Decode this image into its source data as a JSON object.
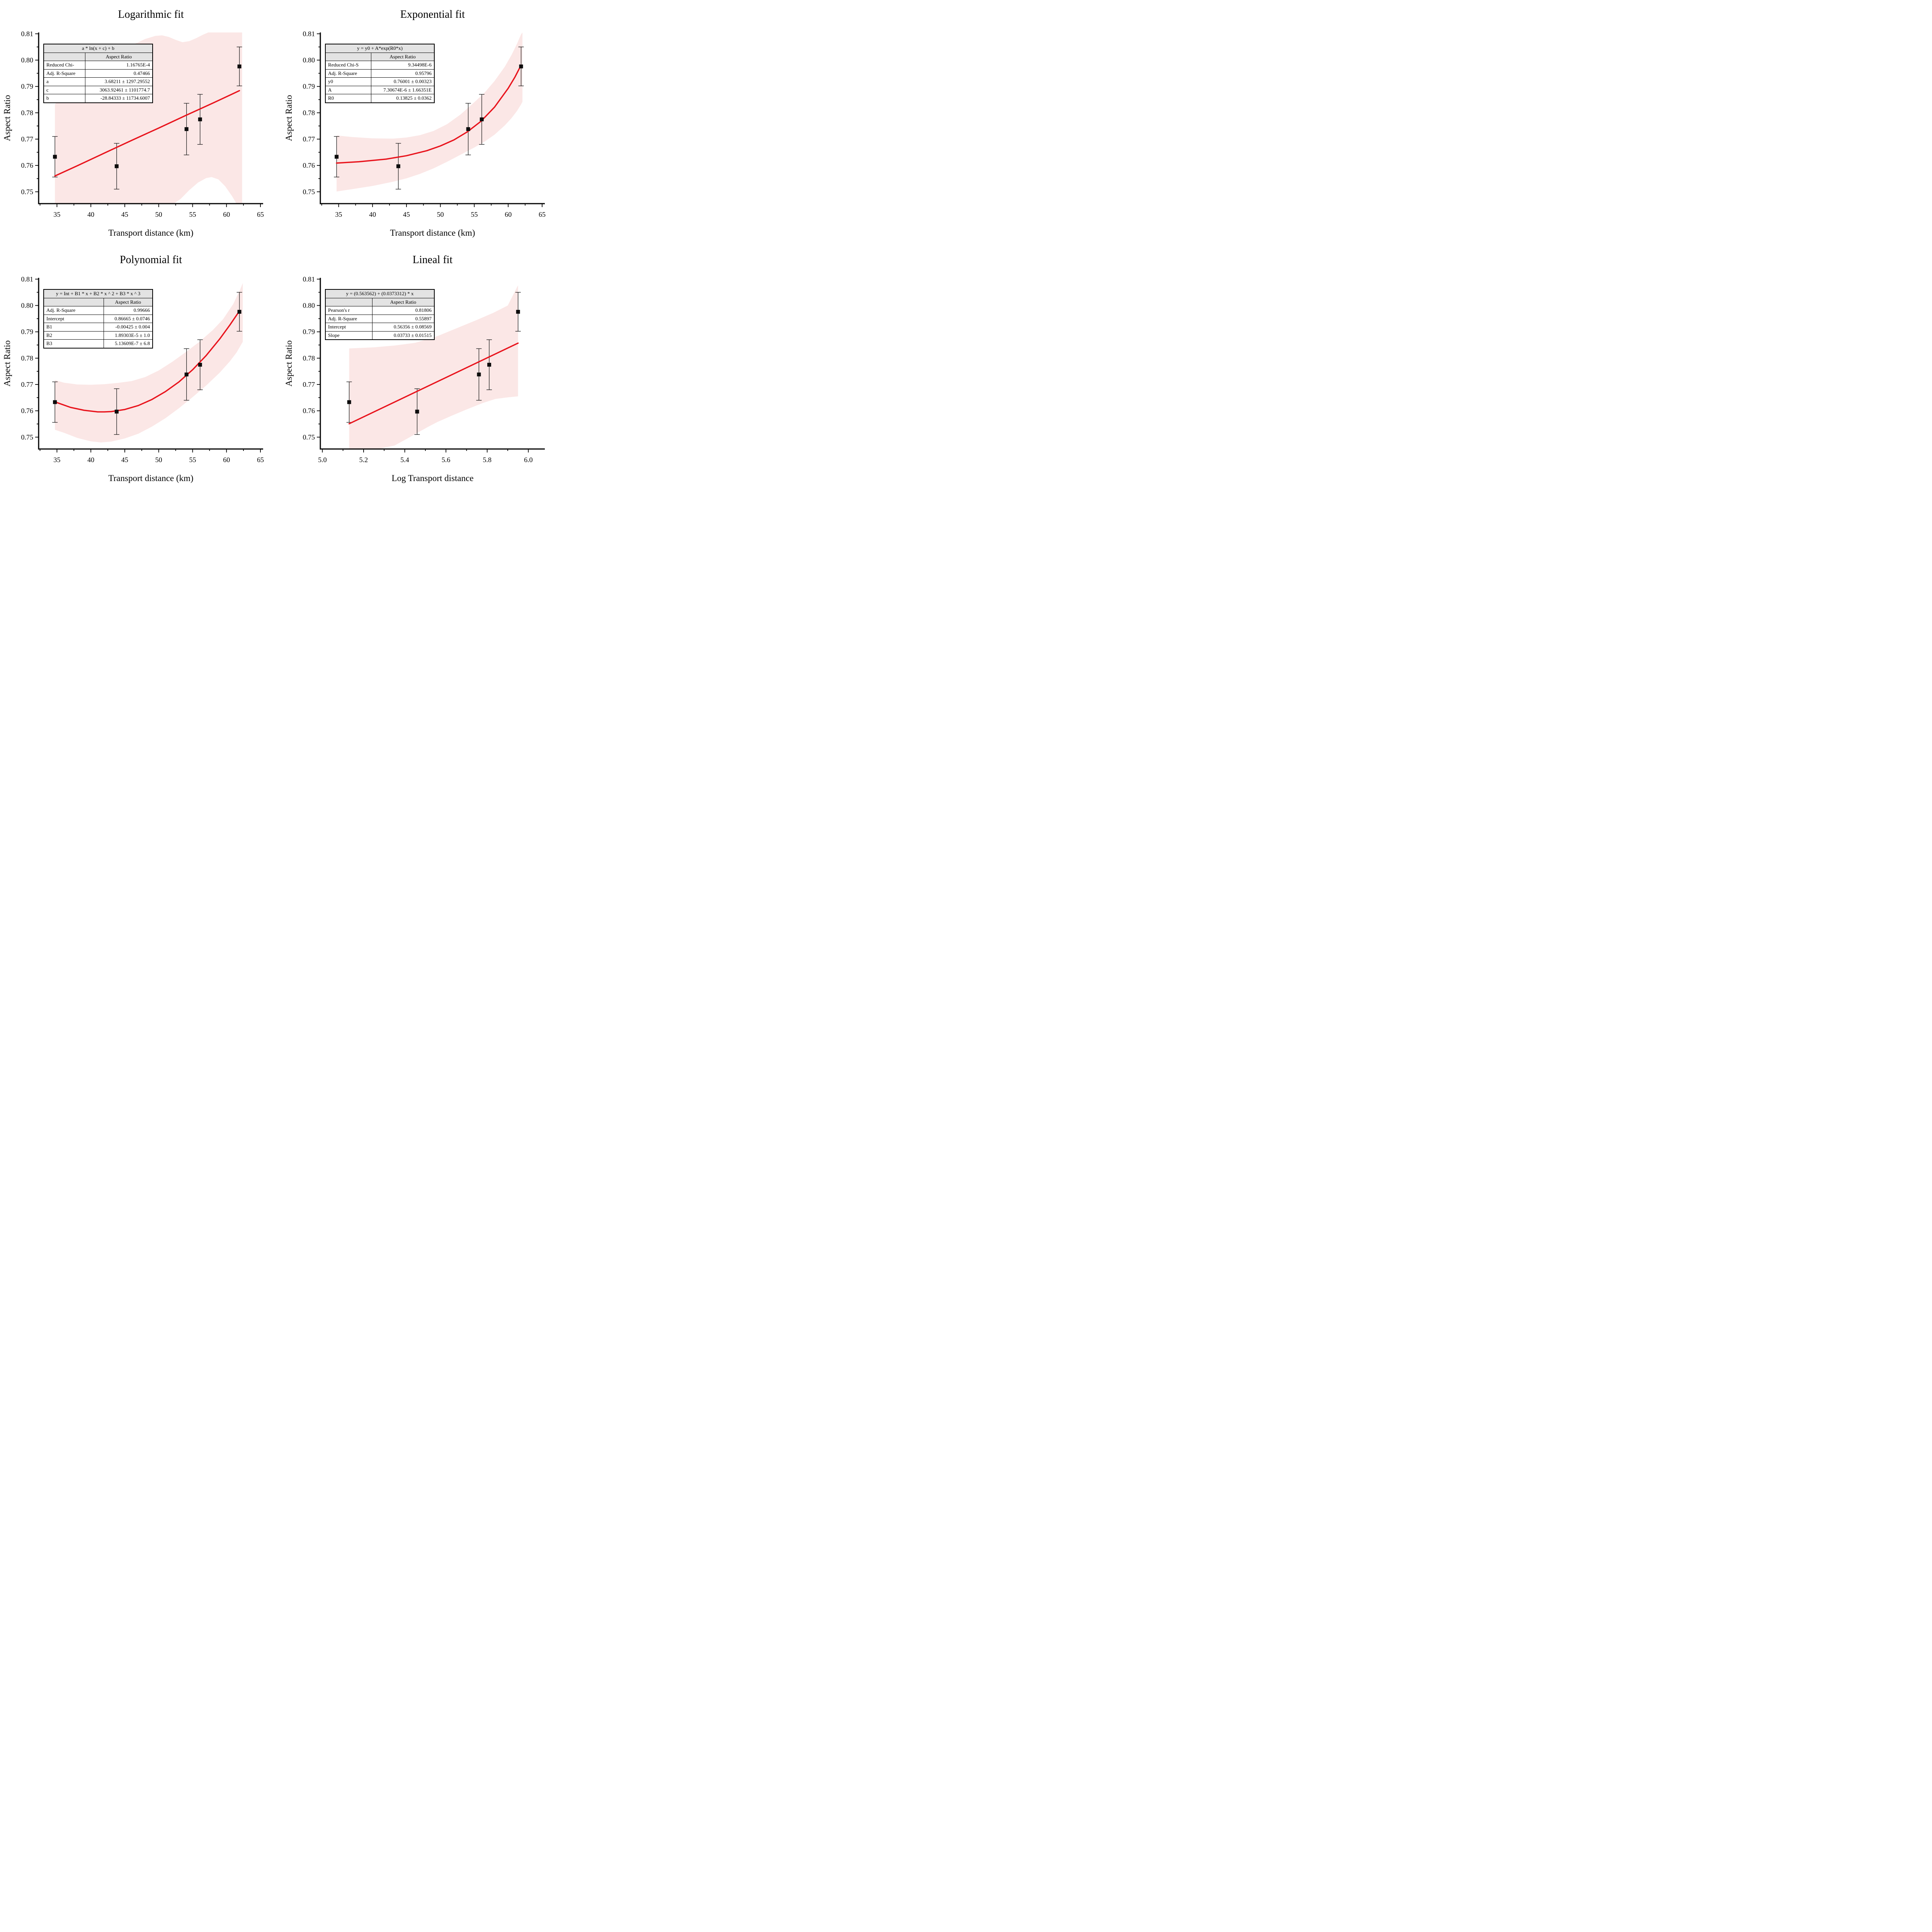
{
  "palette": {
    "fit_line": "#e8131c",
    "band": "#fbe7e6",
    "marker": "#0d0d0d",
    "error_bar": "#1a1a1a",
    "axis": "#000000",
    "table_header_bg": "#e3e3e3"
  },
  "chart_data": [
    {
      "type": "scatter",
      "title": "Logarithmic fit",
      "xlabel": "Transport distance (km)",
      "ylabel": "Aspect Ratio",
      "xlim": [
        32.3,
        65.4
      ],
      "ylim": [
        0.7455,
        0.8105
      ],
      "grid": false,
      "xticks": {
        "major": [
          35,
          40,
          45,
          50,
          55,
          60,
          65
        ],
        "labels": [
          "35",
          "40",
          "45",
          "50",
          "55",
          "60",
          "65"
        ],
        "minor": [
          32.5,
          37.5,
          42.5,
          47.5,
          52.5,
          57.5,
          62.5
        ]
      },
      "yticks": {
        "major": [
          0.75,
          0.76,
          0.77,
          0.78,
          0.79,
          0.8,
          0.81
        ],
        "labels": [
          "0.75",
          "0.76",
          "0.77",
          "0.78",
          "0.79",
          "0.80",
          "0.81"
        ],
        "minor": [
          0.755,
          0.765,
          0.775,
          0.785,
          0.795,
          0.805
        ]
      },
      "points": {
        "x": [
          34.7,
          43.8,
          54.1,
          56.1,
          61.9
        ],
        "y": [
          0.7633,
          0.7597,
          0.7738,
          0.7775,
          0.7976
        ],
        "yerr": [
          0.0077,
          0.0087,
          0.0098,
          0.0095,
          0.0074
        ]
      },
      "fit": [
        [
          34.7,
          0.756
        ],
        [
          38,
          0.7599
        ],
        [
          42,
          0.7647
        ],
        [
          46,
          0.7695
        ],
        [
          50,
          0.7742
        ],
        [
          54,
          0.779
        ],
        [
          58,
          0.7837
        ],
        [
          61,
          0.7873
        ],
        [
          61.9,
          0.7884
        ]
      ],
      "band": {
        "top": [
          [
            34.7,
            0.7832
          ],
          [
            36.5,
            0.7878
          ],
          [
            38.5,
            0.7925
          ],
          [
            40.5,
            0.7967
          ],
          [
            42.5,
            0.8003
          ],
          [
            44.5,
            0.8034
          ],
          [
            46.5,
            0.8062
          ],
          [
            48,
            0.808
          ],
          [
            49.5,
            0.8092
          ],
          [
            50.5,
            0.8094
          ],
          [
            51.5,
            0.8088
          ],
          [
            52.5,
            0.8077
          ],
          [
            53.5,
            0.8068
          ],
          [
            54.5,
            0.8072
          ],
          [
            55.5,
            0.8083
          ],
          [
            56.5,
            0.8096
          ],
          [
            57.3,
            0.8105
          ],
          [
            62.3,
            0.8105
          ]
        ],
        "bottom": [
          [
            34.7,
            0.7455
          ],
          [
            52.2,
            0.7455
          ],
          [
            53.2,
            0.7472
          ],
          [
            54.5,
            0.7506
          ],
          [
            55.8,
            0.7535
          ],
          [
            57,
            0.7552
          ],
          [
            57.8,
            0.7556
          ],
          [
            58.8,
            0.7547
          ],
          [
            59.8,
            0.7521
          ],
          [
            60.8,
            0.7484
          ],
          [
            61.4,
            0.7458
          ],
          [
            61.6,
            0.7455
          ],
          [
            62.3,
            0.7455
          ]
        ]
      },
      "table": {
        "formula": "a * ln(x + c) + b",
        "value_col": "Aspect Ratio",
        "rows": [
          [
            "Reduced Chi-",
            "1.16765E-4"
          ],
          [
            "Adj. R-Square",
            "0.47466"
          ],
          [
            "a",
            "3.68211 ± 1297.29552"
          ],
          [
            "c",
            "3063.92461 ± 1101774.7"
          ],
          [
            "b",
            "-28.84333 ± 11734.6007"
          ]
        ]
      }
    },
    {
      "type": "scatter",
      "title": "Exponential fit",
      "xlabel": "Transport distance (km)",
      "ylabel": "Aspect Ratio",
      "xlim": [
        32.3,
        65.4
      ],
      "ylim": [
        0.7455,
        0.8105
      ],
      "grid": false,
      "xticks": {
        "major": [
          35,
          40,
          45,
          50,
          55,
          60,
          65
        ],
        "labels": [
          "35",
          "40",
          "45",
          "50",
          "55",
          "60",
          "65"
        ],
        "minor": [
          32.5,
          37.5,
          42.5,
          47.5,
          52.5,
          57.5,
          62.5
        ]
      },
      "yticks": {
        "major": [
          0.75,
          0.76,
          0.77,
          0.78,
          0.79,
          0.8,
          0.81
        ],
        "labels": [
          "0.75",
          "0.76",
          "0.77",
          "0.78",
          "0.79",
          "0.80",
          "0.81"
        ],
        "minor": [
          0.755,
          0.765,
          0.775,
          0.785,
          0.795,
          0.805
        ]
      },
      "points": {
        "x": [
          34.7,
          43.8,
          54.1,
          56.1,
          61.9
        ],
        "y": [
          0.7633,
          0.7597,
          0.7738,
          0.7775,
          0.7976
        ],
        "yerr": [
          0.0077,
          0.0087,
          0.0098,
          0.0095,
          0.0074
        ]
      },
      "fit": [
        [
          34.7,
          0.7609
        ],
        [
          38,
          0.7614
        ],
        [
          42,
          0.7624
        ],
        [
          45,
          0.7637
        ],
        [
          48,
          0.7656
        ],
        [
          50,
          0.7674
        ],
        [
          52,
          0.7697
        ],
        [
          54,
          0.7728
        ],
        [
          56,
          0.7768
        ],
        [
          58,
          0.7822
        ],
        [
          60,
          0.7893
        ],
        [
          61,
          0.7936
        ],
        [
          61.9,
          0.7981
        ]
      ],
      "band": {
        "top": [
          [
            34.7,
            0.7714
          ],
          [
            37,
            0.7708
          ],
          [
            40,
            0.7703
          ],
          [
            43,
            0.7702
          ],
          [
            45,
            0.7706
          ],
          [
            47,
            0.7715
          ],
          [
            49,
            0.7731
          ],
          [
            51,
            0.7757
          ],
          [
            53,
            0.7794
          ],
          [
            55,
            0.784
          ],
          [
            56.5,
            0.7876
          ],
          [
            58,
            0.7921
          ],
          [
            59.5,
            0.7975
          ],
          [
            60.5,
            0.802
          ],
          [
            61.3,
            0.8062
          ],
          [
            61.9,
            0.8098
          ],
          [
            62.1,
            0.8105
          ]
        ],
        "bottom": [
          [
            34.7,
            0.7501
          ],
          [
            37,
            0.751
          ],
          [
            40,
            0.7522
          ],
          [
            43,
            0.7538
          ],
          [
            45,
            0.7551
          ],
          [
            47,
            0.7568
          ],
          [
            49,
            0.7589
          ],
          [
            51,
            0.7614
          ],
          [
            53,
            0.7641
          ],
          [
            55,
            0.7668
          ],
          [
            56.5,
            0.769
          ],
          [
            58,
            0.7717
          ],
          [
            59.5,
            0.7752
          ],
          [
            60.5,
            0.778
          ],
          [
            61.3,
            0.7807
          ],
          [
            61.9,
            0.7832
          ],
          [
            62.1,
            0.7842
          ]
        ]
      },
      "table": {
        "formula": "y = y0 + A*exp(R0*x)",
        "value_col": "Aspect Ratio",
        "rows": [
          [
            "Reduced Chi-S",
            "9.34498E-6"
          ],
          [
            "Adj. R-Square",
            "0.95796"
          ],
          [
            "y0",
            "0.76001 ± 0.00323"
          ],
          [
            "A",
            "7.30674E-6 ± 1.66351E"
          ],
          [
            "R0",
            "0.13825 ± 0.0362"
          ]
        ]
      }
    },
    {
      "type": "scatter",
      "title": "Polynomial fit",
      "xlabel": "Transport distance (km)",
      "ylabel": "Aspect Ratio",
      "xlim": [
        32.3,
        65.4
      ],
      "ylim": [
        0.7455,
        0.8105
      ],
      "grid": false,
      "xticks": {
        "major": [
          35,
          40,
          45,
          50,
          55,
          60,
          65
        ],
        "labels": [
          "35",
          "40",
          "45",
          "50",
          "55",
          "60",
          "65"
        ],
        "minor": [
          32.5,
          37.5,
          42.5,
          47.5,
          52.5,
          57.5,
          62.5
        ]
      },
      "yticks": {
        "major": [
          0.75,
          0.76,
          0.77,
          0.78,
          0.79,
          0.8,
          0.81
        ],
        "labels": [
          "0.75",
          "0.76",
          "0.77",
          "0.78",
          "0.79",
          "0.80",
          "0.81"
        ],
        "minor": [
          0.755,
          0.765,
          0.775,
          0.785,
          0.795,
          0.805
        ]
      },
      "points": {
        "x": [
          34.7,
          43.8,
          54.1,
          56.1,
          61.9
        ],
        "y": [
          0.7633,
          0.7597,
          0.7738,
          0.7775,
          0.7976
        ],
        "yerr": [
          0.0077,
          0.0087,
          0.0098,
          0.0095,
          0.0074
        ]
      },
      "fit": [
        [
          34.7,
          0.7634
        ],
        [
          37,
          0.7613
        ],
        [
          39,
          0.7602
        ],
        [
          41,
          0.7596
        ],
        [
          42,
          0.7596
        ],
        [
          43,
          0.7597
        ],
        [
          45,
          0.7605
        ],
        [
          47,
          0.762
        ],
        [
          49,
          0.7643
        ],
        [
          51,
          0.7673
        ],
        [
          53,
          0.771
        ],
        [
          55,
          0.7756
        ],
        [
          57,
          0.781
        ],
        [
          59,
          0.7873
        ],
        [
          60.5,
          0.7926
        ],
        [
          61.9,
          0.7979
        ]
      ],
      "band": {
        "top": [
          [
            34.7,
            0.7717
          ],
          [
            36,
            0.7707
          ],
          [
            38,
            0.77
          ],
          [
            40,
            0.7699
          ],
          [
            42,
            0.7701
          ],
          [
            44,
            0.7706
          ],
          [
            46,
            0.7713
          ],
          [
            48,
            0.7728
          ],
          [
            50,
            0.7753
          ],
          [
            52,
            0.7786
          ],
          [
            54,
            0.7823
          ],
          [
            56,
            0.7862
          ],
          [
            58,
            0.7907
          ],
          [
            59.5,
            0.7948
          ],
          [
            61,
            0.8006
          ],
          [
            62,
            0.806
          ],
          [
            62.4,
            0.8085
          ]
        ],
        "bottom": [
          [
            34.7,
            0.7528
          ],
          [
            36,
            0.7517
          ],
          [
            38,
            0.7497
          ],
          [
            40,
            0.7484
          ],
          [
            41.5,
            0.748
          ],
          [
            43,
            0.7483
          ],
          [
            45,
            0.7495
          ],
          [
            47,
            0.7513
          ],
          [
            49,
            0.754
          ],
          [
            51,
            0.7572
          ],
          [
            53,
            0.761
          ],
          [
            55,
            0.7652
          ],
          [
            57,
            0.7696
          ],
          [
            59,
            0.7745
          ],
          [
            60.5,
            0.7788
          ],
          [
            61.5,
            0.7822
          ],
          [
            62.4,
            0.7862
          ]
        ]
      },
      "table": {
        "formula": "y =  Int + B1 * x + B2 * x ^ 2 + B3 * x ^ 3",
        "value_col": "Aspect Ratio",
        "rows": [
          [
            "Adj. R-Square",
            "0.99666"
          ],
          [
            "Intercept",
            "0.86665 ± 0.0746"
          ],
          [
            "B1",
            "-0.00425 ± 0.004"
          ],
          [
            "B2",
            "1.89303E-5 ± 1.0"
          ],
          [
            "B3",
            "5.13609E-7 ± 6.8"
          ]
        ]
      }
    },
    {
      "type": "scatter",
      "title": "Lineal fit",
      "xlabel": "Log Transport distance",
      "ylabel": "Aspect Ratio",
      "xlim": [
        4.99,
        6.08
      ],
      "ylim": [
        0.7455,
        0.8105
      ],
      "grid": false,
      "xticks": {
        "major": [
          5.0,
          5.2,
          5.4,
          5.6,
          5.8,
          6.0
        ],
        "labels": [
          "5.0",
          "5.2",
          "5.4",
          "5.6",
          "5.8",
          "6.0"
        ],
        "minor": [
          5.1,
          5.3,
          5.5,
          5.7,
          5.9
        ]
      },
      "yticks": {
        "major": [
          0.75,
          0.76,
          0.77,
          0.78,
          0.79,
          0.8,
          0.81
        ],
        "labels": [
          "0.75",
          "0.76",
          "0.77",
          "0.78",
          "0.79",
          "0.80",
          "0.81"
        ],
        "minor": [
          0.755,
          0.765,
          0.775,
          0.785,
          0.795,
          0.805
        ]
      },
      "points": {
        "x": [
          5.13,
          5.46,
          5.76,
          5.81,
          5.95
        ],
        "y": [
          0.7633,
          0.7597,
          0.7738,
          0.7775,
          0.7976
        ],
        "yerr": [
          0.0077,
          0.0087,
          0.0098,
          0.0095,
          0.0074
        ]
      },
      "fit": [
        [
          5.13,
          0.7551
        ],
        [
          5.95,
          0.7857
        ]
      ],
      "band": {
        "top": [
          [
            5.13,
            0.7837
          ],
          [
            5.25,
            0.7841
          ],
          [
            5.35,
            0.7848
          ],
          [
            5.45,
            0.7858
          ],
          [
            5.56,
            0.7884
          ],
          [
            5.65,
            0.7913
          ],
          [
            5.75,
            0.7945
          ],
          [
            5.83,
            0.7972
          ],
          [
            5.9,
            0.8
          ],
          [
            5.95,
            0.8077
          ]
        ],
        "bottom": [
          [
            5.13,
            0.7455
          ],
          [
            5.27,
            0.7455
          ],
          [
            5.35,
            0.7468
          ],
          [
            5.42,
            0.7498
          ],
          [
            5.46,
            0.7516
          ],
          [
            5.52,
            0.7542
          ],
          [
            5.56,
            0.7558
          ],
          [
            5.63,
            0.7582
          ],
          [
            5.7,
            0.7605
          ],
          [
            5.78,
            0.763
          ],
          [
            5.84,
            0.7645
          ],
          [
            5.9,
            0.7651
          ],
          [
            5.95,
            0.7655
          ]
        ]
      },
      "table": {
        "formula": "y = (0.563562) + (0.0373312) * x",
        "value_col": "Aspect Ratio",
        "rows": [
          [
            "Pearson's r",
            "0.81806"
          ],
          [
            "Adj. R-Square",
            "0.55897"
          ],
          [
            "Intercept",
            "0.56356 ± 0.08569"
          ],
          [
            "Slope",
            "0.03733 ± 0.01515"
          ]
        ]
      }
    }
  ]
}
